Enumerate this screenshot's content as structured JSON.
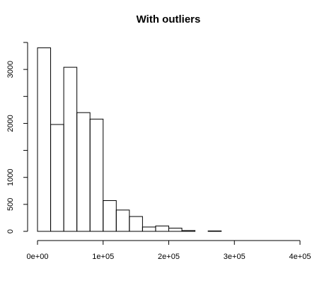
{
  "chart_data": {
    "type": "bar",
    "title": "With outliers",
    "xlabel": "",
    "ylabel": "",
    "bin_width": 20000,
    "bin_starts": [
      0,
      20000,
      40000,
      60000,
      80000,
      100000,
      120000,
      140000,
      160000,
      180000,
      200000,
      220000,
      240000,
      260000,
      280000,
      300000,
      320000,
      340000,
      360000,
      380000
    ],
    "values": [
      3400,
      1980,
      3040,
      2200,
      2080,
      570,
      395,
      275,
      80,
      100,
      60,
      15,
      0,
      8,
      0,
      0,
      0,
      0,
      0,
      0
    ],
    "xlim": [
      0,
      400000
    ],
    "ylim": [
      0,
      3500
    ],
    "x_ticks": [
      {
        "value": 0,
        "label": "0e+00"
      },
      {
        "value": 100000,
        "label": "1e+05"
      },
      {
        "value": 200000,
        "label": "2e+05"
      },
      {
        "value": 300000,
        "label": "3e+05"
      },
      {
        "value": 400000,
        "label": "4e+05"
      }
    ],
    "y_ticks": [
      {
        "value": 0,
        "label": "0"
      },
      {
        "value": 500,
        "label": "500"
      },
      {
        "value": 1000,
        "label": "1000"
      },
      {
        "value": 1500,
        "label": ""
      },
      {
        "value": 2000,
        "label": "2000"
      },
      {
        "value": 2500,
        "label": ""
      },
      {
        "value": 3000,
        "label": "3000"
      },
      {
        "value": 3500,
        "label": ""
      }
    ],
    "grid": false,
    "legend": "none"
  }
}
